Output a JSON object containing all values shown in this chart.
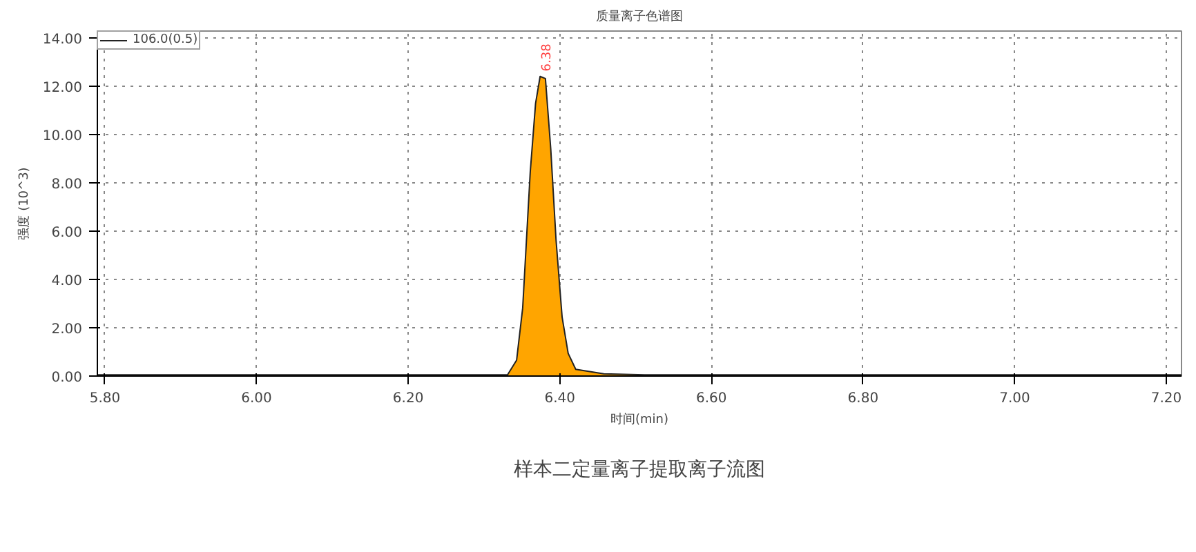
{
  "chart_data": {
    "type": "area",
    "title": "质量离子色谱图",
    "xlabel": "时间(min)",
    "ylabel": "强度 (10^3)",
    "x": [
      5.79,
      5.9,
      6.0,
      6.1,
      6.2,
      6.3,
      6.331,
      6.343,
      6.351,
      6.361,
      6.368,
      6.374,
      6.381,
      6.388,
      6.395,
      6.403,
      6.411,
      6.421,
      6.458,
      6.512,
      6.6,
      6.8,
      7.0,
      7.22
    ],
    "series": [
      {
        "name": "106.0(0.5)",
        "color": "#ffa500",
        "values": [
          0.05,
          0.05,
          0.05,
          0.05,
          0.05,
          0.05,
          0.05,
          0.66,
          2.82,
          8.47,
          11.3,
          12.42,
          12.33,
          9.43,
          5.65,
          2.45,
          0.94,
          0.28,
          0.09,
          0.05,
          0.05,
          0.05,
          0.05,
          0.05
        ]
      }
    ],
    "xlim": [
      5.79,
      7.22
    ],
    "ylim": [
      0,
      14.3
    ],
    "xticks": [
      {
        "value": 5.8,
        "label": "5.80"
      },
      {
        "value": 6.0,
        "label": "6.00"
      },
      {
        "value": 6.2,
        "label": "6.20"
      },
      {
        "value": 6.4,
        "label": "6.40"
      },
      {
        "value": 6.6,
        "label": "6.60"
      },
      {
        "value": 6.8,
        "label": "6.80"
      },
      {
        "value": 7.0,
        "label": "7.00"
      },
      {
        "value": 7.2,
        "label": "7.20"
      }
    ],
    "yticks": [
      {
        "value": 0,
        "label": "0.00"
      },
      {
        "value": 2,
        "label": "2.00"
      },
      {
        "value": 4,
        "label": "4.00"
      },
      {
        "value": 6,
        "label": "6.00"
      },
      {
        "value": 8,
        "label": "8.00"
      },
      {
        "value": 10,
        "label": "10.00"
      },
      {
        "value": 12,
        "label": "12.00"
      },
      {
        "value": 14,
        "label": "14.00"
      }
    ],
    "grid": true,
    "legend": "top left",
    "annotations": [
      {
        "text": "6.38",
        "x": 6.38,
        "y": 12.4
      },
      "样本二定量离子提取离子流图"
    ]
  }
}
